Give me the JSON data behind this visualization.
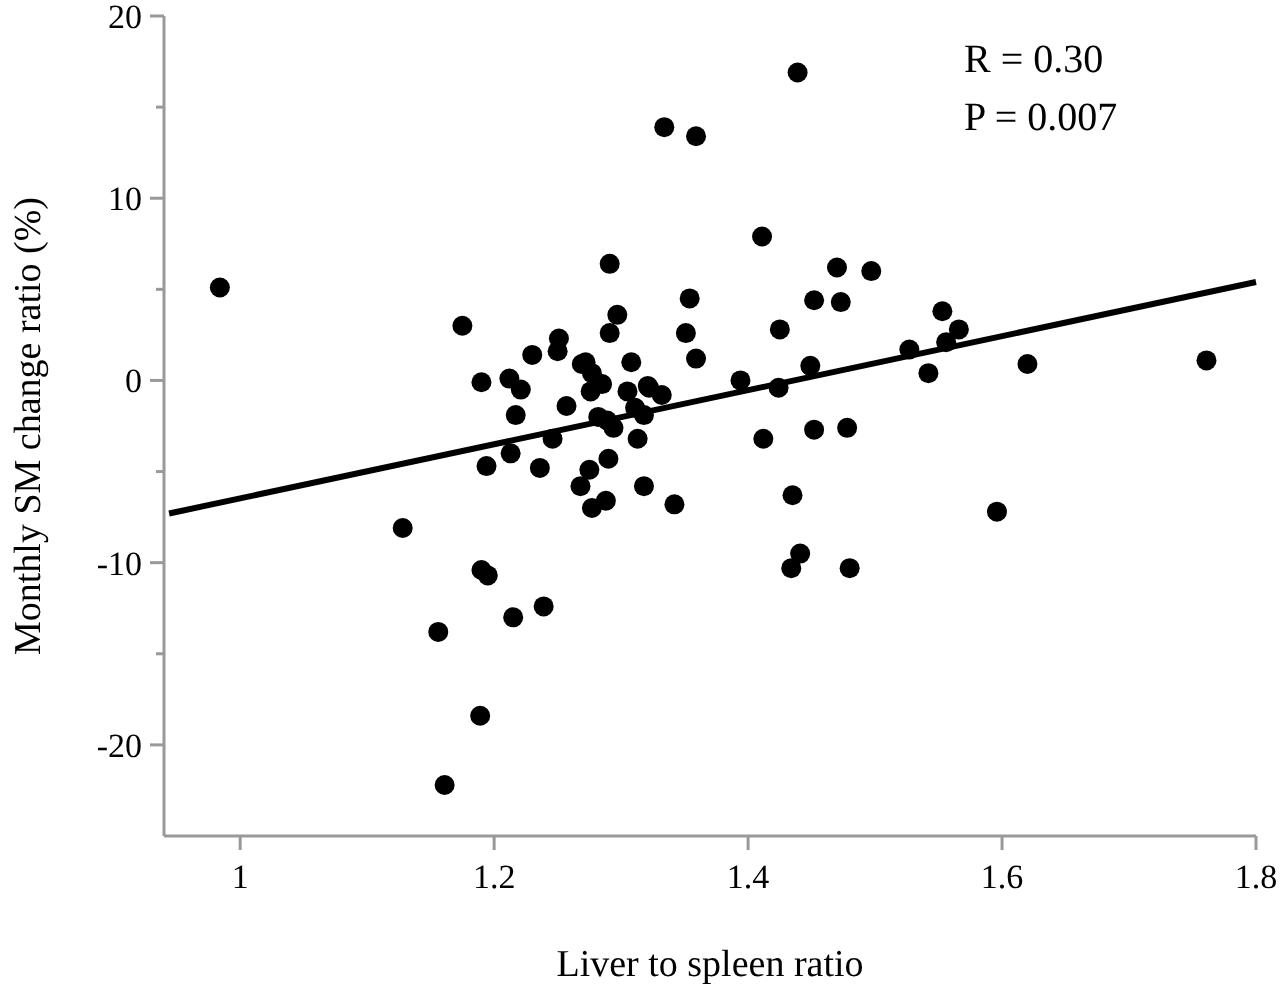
{
  "chart_data": {
    "type": "scatter",
    "xlabel": "Liver to spleen ratio",
    "ylabel": "Monthly SM change ratio (%)",
    "xlim": [
      0.94,
      1.8
    ],
    "ylim": [
      -25,
      20
    ],
    "xticks": [
      1,
      1.2,
      1.4,
      1.6,
      1.8
    ],
    "yticks": [
      -20,
      {
        "value": -15,
        "label": null
      },
      -10,
      {
        "value": -5,
        "label": null
      },
      0,
      {
        "value": 5,
        "label": null
      },
      10,
      {
        "value": 15,
        "label": null
      },
      20
    ],
    "grid": false,
    "marker": "circle",
    "annotations": [
      "R = 0.30",
      "P = 0.007"
    ],
    "series": [
      {
        "color": "#000000",
        "x": [
          0.984,
          1.175,
          1.19,
          1.212,
          1.221,
          1.23,
          1.251,
          1.25,
          1.272,
          1.277,
          1.291,
          1.297,
          1.291,
          1.308,
          1.321,
          1.334,
          1.359,
          1.354,
          1.351,
          1.359,
          1.439,
          1.411,
          1.47,
          1.497,
          1.452,
          1.473,
          1.425,
          1.553,
          1.566,
          1.556,
          1.527,
          1.542,
          1.449,
          1.394,
          1.424,
          1.62,
          1.761,
          1.332,
          1.217,
          1.257,
          1.194,
          1.213,
          1.236,
          1.246,
          1.276,
          1.285,
          1.282,
          1.289,
          1.294,
          1.305,
          1.311,
          1.318,
          1.322,
          1.313,
          1.29,
          1.275,
          1.268,
          1.318,
          1.277,
          1.288,
          1.342,
          1.128,
          1.19,
          1.195,
          1.156,
          1.215,
          1.239,
          1.189,
          1.161,
          1.269,
          1.412,
          1.452,
          1.478,
          1.435,
          1.596,
          1.441,
          1.434,
          1.48
        ],
        "values": [
          5.1,
          3.0,
          -0.1,
          0.1,
          -0.5,
          1.4,
          2.3,
          1.6,
          1.0,
          0.4,
          6.4,
          3.6,
          2.6,
          1.0,
          -0.3,
          13.9,
          13.4,
          4.5,
          2.6,
          1.2,
          16.9,
          7.9,
          6.2,
          6.0,
          4.4,
          4.3,
          2.8,
          3.8,
          2.8,
          2.1,
          1.7,
          0.4,
          0.8,
          0.0,
          -0.4,
          0.9,
          1.1,
          -0.8,
          -1.9,
          -1.4,
          -4.7,
          -4.0,
          -4.8,
          -3.2,
          -0.6,
          -0.2,
          -2.0,
          -2.2,
          -2.6,
          -0.6,
          -1.5,
          -1.9,
          -0.4,
          -3.2,
          -4.3,
          -4.9,
          -5.8,
          -5.8,
          -7.0,
          -6.6,
          -6.8,
          -8.1,
          -10.4,
          -10.7,
          -13.8,
          -13.0,
          -12.4,
          -18.4,
          -22.2,
          0.9,
          -3.2,
          -2.7,
          -2.6,
          -6.3,
          -7.2,
          -9.5,
          -10.3,
          -10.3
        ]
      },
      {
        "type": "line",
        "color": "#000000",
        "x": [
          0.944,
          1.8
        ],
        "values": [
          -7.3,
          5.4
        ],
        "marker": "none"
      }
    ]
  }
}
